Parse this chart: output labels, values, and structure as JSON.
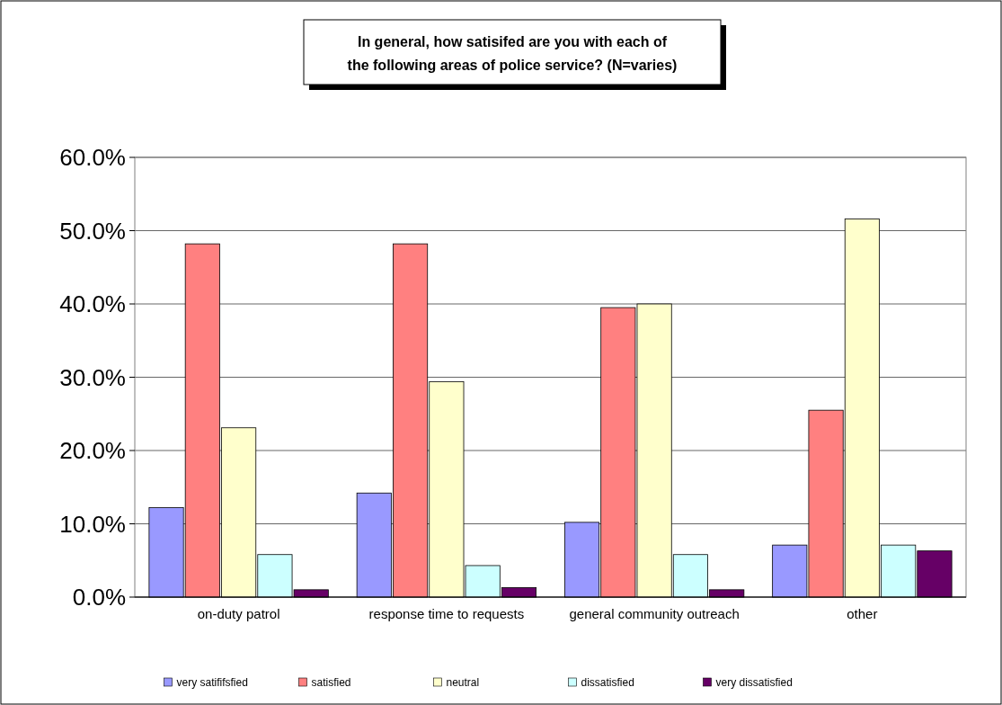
{
  "chart_data": {
    "type": "bar",
    "title": "In general, how satisifed are you with each of the following areas of police service? (N=varies)",
    "categories": [
      "on-duty patrol",
      "response time to requests",
      "general community outreach",
      "other"
    ],
    "series": [
      {
        "name": "very satififsfied",
        "color": "#9999ff",
        "values": [
          12.2,
          14.2,
          10.2,
          7.1
        ]
      },
      {
        "name": "satisfied",
        "color": "#ff8080",
        "values": [
          48.2,
          48.2,
          39.5,
          25.5
        ]
      },
      {
        "name": "neutral",
        "color": "#ffffcc",
        "values": [
          23.1,
          29.4,
          40.0,
          51.6
        ]
      },
      {
        "name": "dissatisfied",
        "color": "#ccffff",
        "values": [
          5.8,
          4.3,
          5.8,
          7.1
        ]
      },
      {
        "name": "very dissatisfied",
        "color": "#660066",
        "values": [
          1.0,
          1.3,
          1.0,
          6.3
        ]
      }
    ],
    "ylim": [
      0,
      60
    ],
    "yticks": [
      {
        "value": 0,
        "label": "0.0%"
      },
      {
        "value": 10,
        "label": "10.0%"
      },
      {
        "value": 20,
        "label": "20.0%"
      },
      {
        "value": 30,
        "label": "30.0%"
      },
      {
        "value": 40,
        "label": "40.0%"
      },
      {
        "value": 50,
        "label": "50.0%"
      },
      {
        "value": 60,
        "label": "60.0%"
      }
    ],
    "grid": "y",
    "legend": "bottom"
  }
}
